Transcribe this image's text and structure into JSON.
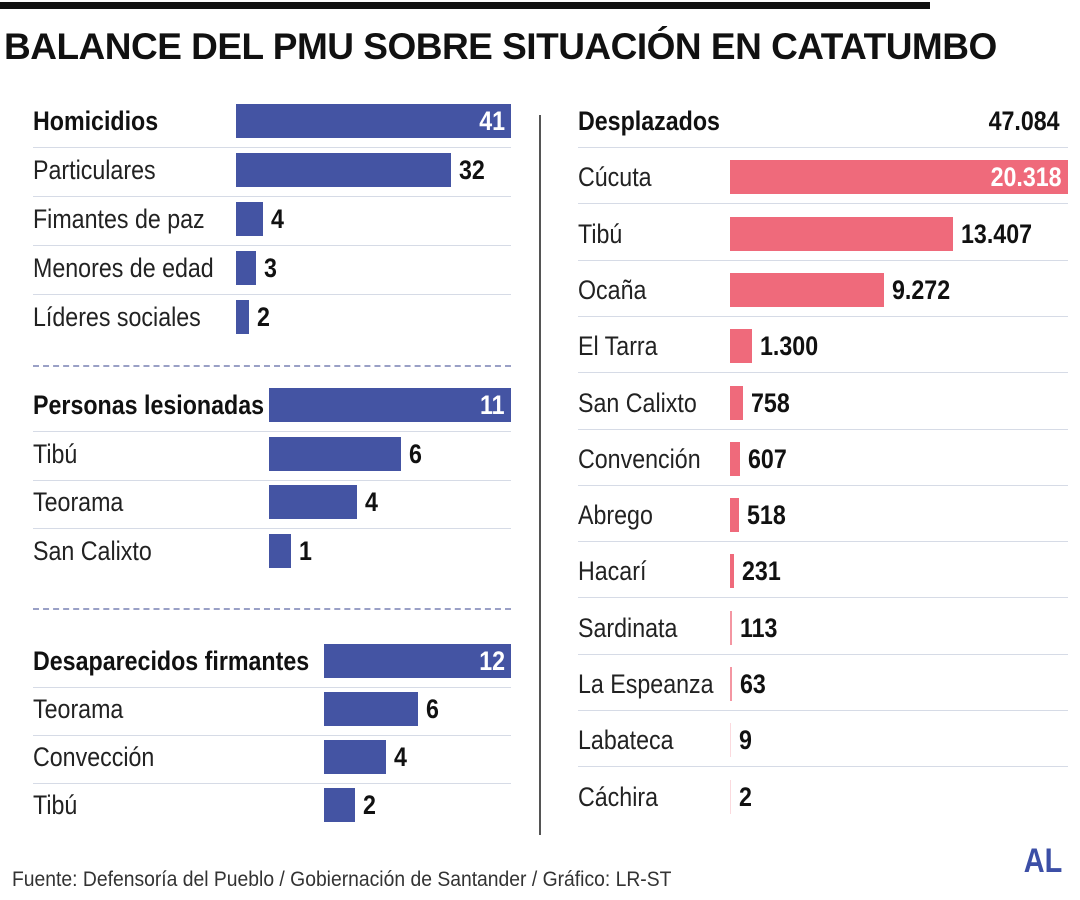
{
  "title": "BALANCE DEL PMU SOBRE SITUACIÓN EN CATATUMBO",
  "footer": "Fuente: Defensoría del Pueblo / Gobiernación de Santander / Gráfico: LR-ST",
  "logo": "AL",
  "colors": {
    "left_bars": "#4454a3",
    "right_bars": "#ef6a7b",
    "divider_dash": "#9aa0c6"
  },
  "chart_data": [
    {
      "type": "bar",
      "orientation": "horizontal",
      "title": "Homicidios",
      "total_label": "41",
      "total": 41,
      "categories": [
        "Particulares",
        "Fimantes de paz",
        "Menores de edad",
        "Líderes sociales"
      ],
      "values": [
        32,
        4,
        3,
        2
      ],
      "value_labels": [
        "32",
        "4",
        "3",
        "2"
      ]
    },
    {
      "type": "bar",
      "orientation": "horizontal",
      "title": "Personas lesionadas",
      "total_label": "11",
      "total": 11,
      "categories": [
        "Tibú",
        "Teorama",
        "San Calixto"
      ],
      "values": [
        6,
        4,
        1
      ],
      "value_labels": [
        "6",
        "4",
        "1"
      ]
    },
    {
      "type": "bar",
      "orientation": "horizontal",
      "title": "Desaparecidos firmantes",
      "total_label": "12",
      "total": 12,
      "categories": [
        "Teorama",
        "Convección",
        "Tibú"
      ],
      "values": [
        6,
        4,
        2
      ],
      "value_labels": [
        "6",
        "4",
        "2"
      ]
    },
    {
      "type": "bar",
      "orientation": "horizontal",
      "title": "Desplazados",
      "total_label": "47.084",
      "total": 47084,
      "categories": [
        "Cúcuta",
        "Tibú",
        "Ocaña",
        "El Tarra",
        "San Calixto",
        "Convención",
        "Abrego",
        "Hacarí",
        "Sardinata",
        "La Espeanza",
        "Labateca",
        "Cáchira"
      ],
      "values": [
        20318,
        13407,
        9272,
        1300,
        758,
        607,
        518,
        231,
        113,
        63,
        9,
        2
      ],
      "value_labels": [
        "20.318",
        "13.407",
        "9.272",
        "1.300",
        "758",
        "607",
        "518",
        "231",
        "113",
        "63",
        "9",
        "2"
      ]
    }
  ]
}
